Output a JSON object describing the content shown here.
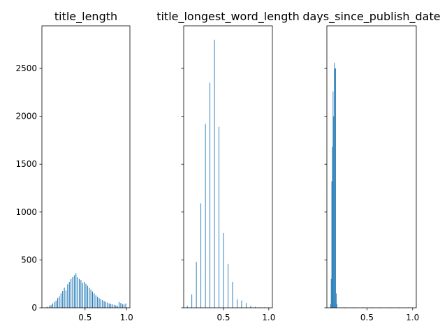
{
  "chart_data": [
    {
      "type": "histogram",
      "title": "title_length",
      "xlim": [
        -0.02,
        1.04
      ],
      "ylim": [
        0,
        2945
      ],
      "xticks": [
        0.5,
        1.0
      ],
      "xtick_labels": [
        "0.5",
        "1.0"
      ],
      "yticks": [
        0,
        500,
        1000,
        1500,
        2000,
        2500
      ],
      "ytick_labels": [
        "0",
        "500",
        "1000",
        "1500",
        "2000",
        "2500"
      ],
      "bin_width": 0.009,
      "bins": [
        {
          "x": 0.03,
          "y": 5
        },
        {
          "x": 0.05,
          "y": 10
        },
        {
          "x": 0.07,
          "y": 20
        },
        {
          "x": 0.09,
          "y": 30
        },
        {
          "x": 0.11,
          "y": 45
        },
        {
          "x": 0.13,
          "y": 60
        },
        {
          "x": 0.15,
          "y": 75
        },
        {
          "x": 0.17,
          "y": 100
        },
        {
          "x": 0.19,
          "y": 120
        },
        {
          "x": 0.21,
          "y": 150
        },
        {
          "x": 0.23,
          "y": 175
        },
        {
          "x": 0.25,
          "y": 210
        },
        {
          "x": 0.27,
          "y": 180
        },
        {
          "x": 0.29,
          "y": 245
        },
        {
          "x": 0.31,
          "y": 270
        },
        {
          "x": 0.33,
          "y": 300
        },
        {
          "x": 0.35,
          "y": 320
        },
        {
          "x": 0.37,
          "y": 340
        },
        {
          "x": 0.39,
          "y": 360
        },
        {
          "x": 0.41,
          "y": 320
        },
        {
          "x": 0.43,
          "y": 300
        },
        {
          "x": 0.45,
          "y": 290
        },
        {
          "x": 0.47,
          "y": 260
        },
        {
          "x": 0.49,
          "y": 270
        },
        {
          "x": 0.51,
          "y": 250
        },
        {
          "x": 0.53,
          "y": 230
        },
        {
          "x": 0.55,
          "y": 210
        },
        {
          "x": 0.57,
          "y": 190
        },
        {
          "x": 0.59,
          "y": 170
        },
        {
          "x": 0.61,
          "y": 150
        },
        {
          "x": 0.63,
          "y": 130
        },
        {
          "x": 0.65,
          "y": 115
        },
        {
          "x": 0.67,
          "y": 100
        },
        {
          "x": 0.69,
          "y": 90
        },
        {
          "x": 0.71,
          "y": 80
        },
        {
          "x": 0.73,
          "y": 70
        },
        {
          "x": 0.75,
          "y": 60
        },
        {
          "x": 0.77,
          "y": 55
        },
        {
          "x": 0.79,
          "y": 45
        },
        {
          "x": 0.81,
          "y": 40
        },
        {
          "x": 0.83,
          "y": 35
        },
        {
          "x": 0.85,
          "y": 30
        },
        {
          "x": 0.87,
          "y": 25
        },
        {
          "x": 0.89,
          "y": 20
        },
        {
          "x": 0.91,
          "y": 60
        },
        {
          "x": 0.93,
          "y": 50
        },
        {
          "x": 0.95,
          "y": 40
        },
        {
          "x": 0.97,
          "y": 35
        },
        {
          "x": 0.99,
          "y": 45
        }
      ]
    },
    {
      "type": "histogram",
      "title": "title_longest_word_length",
      "xlim": [
        0.06,
        1.04
      ],
      "ylim": [
        0,
        2945
      ],
      "xticks": [
        0.5,
        1.0
      ],
      "xtick_labels": [
        "0.5",
        "1.0"
      ],
      "yticks": [
        0,
        500,
        1000,
        1500,
        2000,
        2500
      ],
      "ytick_labels": [
        "",
        "",
        "",
        "",
        "",
        ""
      ],
      "bin_width": 0.007,
      "bins": [
        {
          "x": 0.1,
          "y": 20
        },
        {
          "x": 0.15,
          "y": 140
        },
        {
          "x": 0.2,
          "y": 480
        },
        {
          "x": 0.25,
          "y": 1090
        },
        {
          "x": 0.3,
          "y": 1920
        },
        {
          "x": 0.35,
          "y": 2350
        },
        {
          "x": 0.4,
          "y": 2800
        },
        {
          "x": 0.45,
          "y": 1890
        },
        {
          "x": 0.5,
          "y": 780
        },
        {
          "x": 0.55,
          "y": 460
        },
        {
          "x": 0.6,
          "y": 270
        },
        {
          "x": 0.65,
          "y": 90
        },
        {
          "x": 0.7,
          "y": 75
        },
        {
          "x": 0.75,
          "y": 50
        },
        {
          "x": 0.8,
          "y": 20
        },
        {
          "x": 0.85,
          "y": 10
        },
        {
          "x": 0.9,
          "y": 5
        },
        {
          "x": 0.95,
          "y": 5
        }
      ]
    },
    {
      "type": "histogram",
      "title": "days_since_publish_date",
      "xlim": [
        0.06,
        1.04
      ],
      "ylim": [
        0,
        2945
      ],
      "xticks": [
        0.5,
        1.0
      ],
      "xtick_labels": [
        "0.5",
        "1.0"
      ],
      "yticks": [
        0,
        500,
        1000,
        1500,
        2000,
        2500
      ],
      "ytick_labels": [
        "",
        "",
        "",
        "",
        "",
        ""
      ],
      "bin_width": 0.0065,
      "bins": [
        {
          "x": 0.1,
          "y": 40
        },
        {
          "x": 0.107,
          "y": 300
        },
        {
          "x": 0.114,
          "y": 1320
        },
        {
          "x": 0.121,
          "y": 1680
        },
        {
          "x": 0.128,
          "y": 2260
        },
        {
          "x": 0.135,
          "y": 2000
        },
        {
          "x": 0.142,
          "y": 2560
        },
        {
          "x": 0.149,
          "y": 2500
        },
        {
          "x": 0.156,
          "y": 2500
        },
        {
          "x": 0.163,
          "y": 150
        },
        {
          "x": 0.17,
          "y": 40
        },
        {
          "x": 0.25,
          "y": 5
        },
        {
          "x": 0.35,
          "y": 5
        },
        {
          "x": 0.45,
          "y": 5
        },
        {
          "x": 0.55,
          "y": 5
        },
        {
          "x": 0.65,
          "y": 5
        },
        {
          "x": 0.75,
          "y": 5
        },
        {
          "x": 0.85,
          "y": 5
        },
        {
          "x": 0.95,
          "y": 5
        }
      ]
    }
  ],
  "colors": {
    "bar": "#1f77b4",
    "axis": "#000000",
    "background": "#ffffff"
  }
}
